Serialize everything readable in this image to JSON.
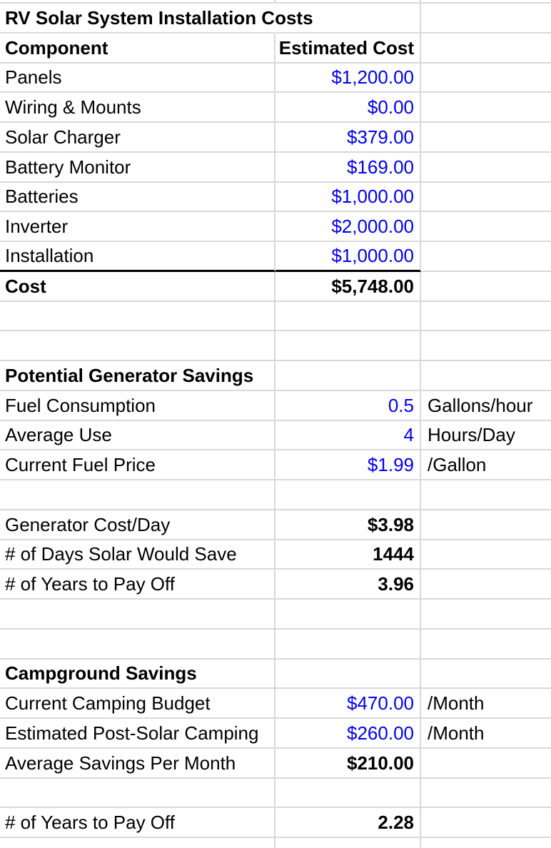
{
  "sheet": {
    "title": "RV Solar System Installation Costs",
    "colors": {
      "input_value_blue": "#0000f0",
      "gridline_gray": "#d9d9d9",
      "text_black": "#000000",
      "background": "#ffffff",
      "total_divider_black": "#000000"
    },
    "rows": [
      {
        "label": "RV Solar System Installation Costs",
        "value": "",
        "unit": "",
        "type": "title"
      },
      {
        "label": "Component",
        "value": "Estimated Cost",
        "unit": "",
        "type": "header"
      },
      {
        "label": "Panels",
        "value": "$1,200.00",
        "unit": "",
        "type": "input"
      },
      {
        "label": "Wiring & Mounts",
        "value": "$0.00",
        "unit": "",
        "type": "input"
      },
      {
        "label": "Solar Charger",
        "value": "$379.00",
        "unit": "",
        "type": "input"
      },
      {
        "label": "Battery Monitor",
        "value": "$169.00",
        "unit": "",
        "type": "input"
      },
      {
        "label": "Batteries",
        "value": "$1,000.00",
        "unit": "",
        "type": "input"
      },
      {
        "label": "Inverter",
        "value": "$2,000.00",
        "unit": "",
        "type": "input"
      },
      {
        "label": "Installation",
        "value": "$1,000.00",
        "unit": "",
        "type": "input",
        "bottom_border": "black"
      },
      {
        "label": "Cost",
        "value": "$5,748.00",
        "unit": "",
        "type": "total"
      },
      {
        "label": "",
        "value": "",
        "unit": "",
        "type": "empty"
      },
      {
        "label": "",
        "value": "",
        "unit": "",
        "type": "empty"
      },
      {
        "label": "Potential Generator Savings",
        "value": "",
        "unit": "",
        "type": "section"
      },
      {
        "label": "Fuel Consumption",
        "value": "0.5",
        "unit": "Gallons/hour",
        "type": "input"
      },
      {
        "label": "Average Use",
        "value": "4",
        "unit": "Hours/Day",
        "type": "input"
      },
      {
        "label": "Current Fuel Price",
        "value": "$1.99",
        "unit": "/Gallon",
        "type": "input"
      },
      {
        "label": "",
        "value": "",
        "unit": "",
        "type": "empty"
      },
      {
        "label": "Generator Cost/Day",
        "value": "$3.98",
        "unit": "",
        "type": "result"
      },
      {
        "label": "# of Days Solar Would Save",
        "value": "1444",
        "unit": "",
        "type": "result"
      },
      {
        "label": "# of Years to Pay Off",
        "value": "3.96",
        "unit": "",
        "type": "result"
      },
      {
        "label": "",
        "value": "",
        "unit": "",
        "type": "empty"
      },
      {
        "label": "",
        "value": "",
        "unit": "",
        "type": "empty"
      },
      {
        "label": "Campground Savings",
        "value": "",
        "unit": "",
        "type": "section"
      },
      {
        "label": "Current Camping Budget",
        "value": "$470.00",
        "unit": "/Month",
        "type": "input"
      },
      {
        "label": "Estimated Post-Solar Camping",
        "value": "$260.00",
        "unit": "/Month",
        "type": "input"
      },
      {
        "label": "Average Savings Per Month",
        "value": "$210.00",
        "unit": "",
        "type": "result"
      },
      {
        "label": "",
        "value": "",
        "unit": "",
        "type": "empty"
      },
      {
        "label": "# of Years to Pay Off",
        "value": "2.28",
        "unit": "",
        "type": "result"
      }
    ]
  }
}
